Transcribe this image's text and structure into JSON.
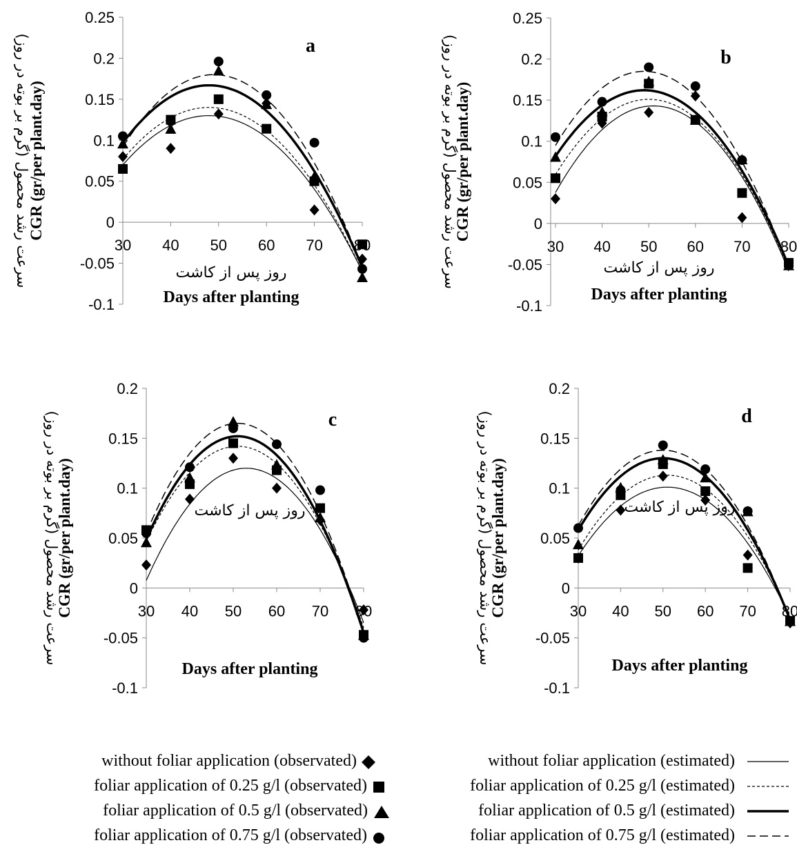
{
  "chart_data": [
    {
      "type": "scatter",
      "panel_label": "a",
      "title": "",
      "ylabel_persian": "سرعت رشد محصول (گرم بر بوته در روز)",
      "ylabel": "CGR (gr/per plant.day)",
      "xlabel_persian": "روز پس از کاشت",
      "xlabel": "Days after planting",
      "xlim": [
        30,
        80
      ],
      "ylim": [
        -0.1,
        0.25
      ],
      "y_ticks": [
        "-0.1",
        "-0.05",
        "0",
        "0.05",
        "0.1",
        "0.15",
        "0.2",
        "0.25"
      ],
      "x_ticks": [
        "30",
        "40",
        "50",
        "60",
        "70",
        "80"
      ],
      "x": [
        30,
        40,
        50,
        60,
        70,
        80
      ],
      "observed": [
        {
          "values": [
            0.08,
            0.09,
            0.132,
            0.145,
            0.015,
            -0.045
          ]
        },
        {
          "values": [
            0.065,
            0.125,
            0.15,
            0.114,
            0.05,
            -0.027
          ]
        },
        {
          "values": [
            0.095,
            0.113,
            0.184,
            0.143,
            0.055,
            -0.068
          ]
        },
        {
          "values": [
            0.105,
            0.123,
            0.196,
            0.155,
            0.097,
            -0.057
          ]
        }
      ],
      "estimated": [
        {
          "peak_x": 48,
          "peak_y": 0.13,
          "end_y": -0.06
        },
        {
          "peak_x": 48,
          "peak_y": 0.14,
          "end_y": -0.06
        },
        {
          "peak_x": 48,
          "peak_y": 0.167,
          "end_y": -0.055
        },
        {
          "peak_x": 49,
          "peak_y": 0.18,
          "end_y": -0.055
        }
      ]
    },
    {
      "type": "scatter",
      "panel_label": "b",
      "title": "",
      "ylabel_persian": "سرعت رشد محصول (گرم بر بوته در روز)",
      "ylabel": "CGR (gr/per plant.day)",
      "xlabel_persian": "روز پس از کاشت",
      "xlabel": "Days after planting",
      "xlim": [
        30,
        80
      ],
      "ylim": [
        -0.1,
        0.25
      ],
      "y_ticks": [
        "-0.1",
        "-0.05",
        "0",
        "0.05",
        "0.1",
        "0.15",
        "0.2",
        "0.25"
      ],
      "x_ticks": [
        "30",
        "40",
        "50",
        "60",
        "70",
        "80"
      ],
      "x": [
        30,
        40,
        50,
        60,
        70,
        80
      ],
      "observed": [
        {
          "values": [
            0.03,
            0.122,
            0.135,
            0.155,
            0.007,
            -0.05
          ]
        },
        {
          "values": [
            0.055,
            0.13,
            0.17,
            0.126,
            0.037,
            -0.048
          ]
        },
        {
          "values": [
            0.08,
            0.135,
            0.172,
            0.125,
            0.077,
            -0.052
          ]
        },
        {
          "values": [
            0.105,
            0.148,
            0.19,
            0.167,
            0.077,
            -0.048
          ]
        }
      ],
      "estimated": [
        {
          "peak_x": 51,
          "peak_y": 0.143,
          "end_y": -0.058
        },
        {
          "peak_x": 50,
          "peak_y": 0.151,
          "end_y": -0.055
        },
        {
          "peak_x": 49,
          "peak_y": 0.162,
          "end_y": -0.052
        },
        {
          "peak_x": 49,
          "peak_y": 0.185,
          "end_y": -0.055
        }
      ]
    },
    {
      "type": "scatter",
      "panel_label": "c",
      "title": "",
      "ylabel_persian": "سرعت رشد محصول (گرم بر بوته در روز)",
      "ylabel": "CGR (gr/per plant.day)",
      "xlabel_persian": "روز پس از کاشت",
      "xlabel": "Days after planting",
      "xlim": [
        30,
        80
      ],
      "ylim": [
        -0.1,
        0.2
      ],
      "y_ticks": [
        "-0.1",
        "-0.05",
        "0",
        "0.05",
        "0.1",
        "0.15",
        "0.2"
      ],
      "x_ticks": [
        "30",
        "40",
        "50",
        "60",
        "70",
        "80"
      ],
      "x": [
        30,
        40,
        50,
        60,
        70,
        80
      ],
      "observed": [
        {
          "values": [
            0.023,
            0.089,
            0.13,
            0.1,
            0.068,
            -0.022
          ]
        },
        {
          "values": [
            0.058,
            0.104,
            0.145,
            0.118,
            0.08,
            -0.047
          ]
        },
        {
          "values": [
            0.045,
            0.11,
            0.166,
            0.123,
            0.07,
            -0.048
          ]
        },
        {
          "values": [
            0.055,
            0.121,
            0.16,
            0.144,
            0.098,
            -0.05
          ]
        }
      ],
      "estimated": [
        {
          "peak_x": 53,
          "peak_y": 0.12,
          "end_y": -0.035
        },
        {
          "peak_x": 51,
          "peak_y": 0.142,
          "end_y": -0.04
        },
        {
          "peak_x": 51,
          "peak_y": 0.152,
          "end_y": -0.045
        },
        {
          "peak_x": 51,
          "peak_y": 0.165,
          "end_y": -0.045
        }
      ]
    },
    {
      "type": "scatter",
      "panel_label": "d",
      "title": "",
      "ylabel_persian": "سرعت رشد محصول (گرم بر بوته در روز)",
      "ylabel": "CGR (gr/per plant.day)",
      "xlabel_persian": "روز پس از کاشت",
      "xlabel": "Days after planting",
      "xlim": [
        30,
        80
      ],
      "ylim": [
        -0.1,
        0.2
      ],
      "y_ticks": [
        "-0.1",
        "-0.05",
        "0",
        "0.05",
        "0.1",
        "0.15",
        "0.2"
      ],
      "x_ticks": [
        "30",
        "40",
        "50",
        "60",
        "70",
        "80"
      ],
      "x": [
        30,
        40,
        50,
        60,
        70,
        80
      ],
      "observed": [
        {
          "values": [
            0.03,
            0.078,
            0.112,
            0.088,
            0.033,
            -0.035
          ]
        },
        {
          "values": [
            0.03,
            0.093,
            0.124,
            0.097,
            0.02,
            -0.033
          ]
        },
        {
          "values": [
            0.043,
            0.1,
            0.128,
            0.11,
            0.076,
            -0.034
          ]
        },
        {
          "values": [
            0.06,
            0.098,
            0.143,
            0.119,
            0.077,
            -0.033
          ]
        }
      ],
      "estimated": [
        {
          "peak_x": 51,
          "peak_y": 0.101,
          "end_y": -0.03
        },
        {
          "peak_x": 51,
          "peak_y": 0.113,
          "end_y": -0.03
        },
        {
          "peak_x": 50,
          "peak_y": 0.13,
          "end_y": -0.032
        },
        {
          "peak_x": 50,
          "peak_y": 0.138,
          "end_y": -0.032
        }
      ]
    }
  ],
  "legend": {
    "observed": [
      {
        "label": "without foliar application (observated)",
        "marker": "diamond"
      },
      {
        "label": "foliar application of 0.25 g/l (observated)",
        "marker": "square"
      },
      {
        "label": "foliar application of 0.5 g/l (observated)",
        "marker": "triangle"
      },
      {
        "label": "foliar application of 0.75 g/l (observated)",
        "marker": "circle"
      }
    ],
    "estimated": [
      {
        "label": "without foliar application (estimated)",
        "line": "thin-solid"
      },
      {
        "label": "foliar application of 0.25 g/l (estimated)",
        "line": "short-dash"
      },
      {
        "label": "foliar application of 0.5 g/l (estimated)",
        "line": "thick-solid"
      },
      {
        "label": "foliar application of 0.75 g/l (estimated)",
        "line": "long-dash"
      }
    ]
  }
}
